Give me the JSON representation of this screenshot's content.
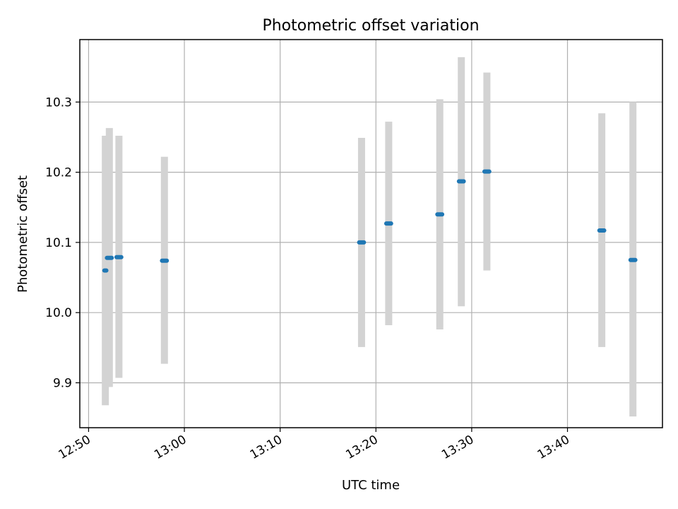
{
  "chart_data": {
    "type": "scatter",
    "title": "Photometric offset variation",
    "xlabel": "UTC time",
    "ylabel": "Photometric offset",
    "xlim": [
      "12:49:05",
      "13:49:55"
    ],
    "ylim": [
      9.836,
      10.389
    ],
    "x_ticks": [
      "12:50",
      "13:00",
      "13:10",
      "13:20",
      "13:30",
      "13:40"
    ],
    "y_ticks": [
      9.9,
      10.0,
      10.1,
      10.2,
      10.3
    ],
    "grid": true,
    "colors": {
      "point": "#1f77b4",
      "errorbar": "#d3d3d3"
    },
    "points": [
      {
        "t": "12:51:45",
        "y": 10.06,
        "ylo": 9.868,
        "yhi": 10.252,
        "width_min": 0.2
      },
      {
        "t": "12:52:10",
        "y": 10.078,
        "ylo": 9.894,
        "yhi": 10.263,
        "width_min": 0.5
      },
      {
        "t": "12:53:10",
        "y": 10.079,
        "ylo": 9.907,
        "yhi": 10.252,
        "width_min": 0.5
      },
      {
        "t": "12:57:55",
        "y": 10.074,
        "ylo": 9.927,
        "yhi": 10.222,
        "width_min": 0.5
      },
      {
        "t": "13:18:30",
        "y": 10.1,
        "ylo": 9.951,
        "yhi": 10.249,
        "width_min": 0.5
      },
      {
        "t": "13:21:20",
        "y": 10.127,
        "ylo": 9.982,
        "yhi": 10.272,
        "width_min": 0.5
      },
      {
        "t": "13:26:40",
        "y": 10.14,
        "ylo": 9.976,
        "yhi": 10.304,
        "width_min": 0.5
      },
      {
        "t": "13:28:55",
        "y": 10.187,
        "ylo": 10.009,
        "yhi": 10.364,
        "width_min": 0.5
      },
      {
        "t": "13:31:35",
        "y": 10.201,
        "ylo": 10.06,
        "yhi": 10.342,
        "width_min": 0.5
      },
      {
        "t": "13:43:35",
        "y": 10.117,
        "ylo": 9.951,
        "yhi": 10.284,
        "width_min": 0.5
      },
      {
        "t": "13:46:50",
        "y": 10.075,
        "ylo": 9.852,
        "yhi": 10.3,
        "width_min": 0.5
      }
    ]
  }
}
